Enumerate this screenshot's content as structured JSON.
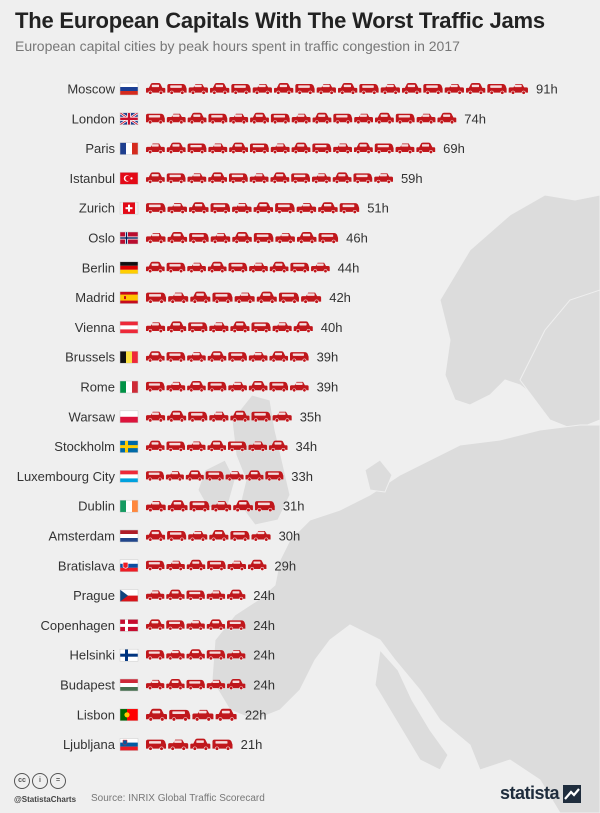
{
  "header": {
    "title": "The European Capitals With The Worst Traffic Jams",
    "subtitle": "European capital cities by peak hours spent in traffic congestion in 2017"
  },
  "colors": {
    "car": "#c0171c",
    "background": "#efefef",
    "map": "#dcdcdc",
    "text": "#333333"
  },
  "chart_data": {
    "type": "bar",
    "unit_suffix": "h",
    "title": "The European Capitals With The Worst Traffic Jams",
    "subtitle": "European capital cities by peak hours spent in traffic congestion in 2017",
    "categories": [
      "Moscow",
      "London",
      "Paris",
      "Istanbul",
      "Zurich",
      "Oslo",
      "Berlin",
      "Madrid",
      "Vienna",
      "Brussels",
      "Rome",
      "Warsaw",
      "Stockholm",
      "Luxembourg City",
      "Dublin",
      "Amsterdam",
      "Bratislava",
      "Prague",
      "Copenhagen",
      "Helsinki",
      "Budapest",
      "Lisbon",
      "Ljubljana"
    ],
    "values": [
      91,
      74,
      69,
      59,
      51,
      46,
      44,
      42,
      40,
      39,
      39,
      35,
      34,
      33,
      31,
      30,
      29,
      24,
      24,
      24,
      24,
      22,
      21
    ],
    "value_labels": [
      "91h",
      "74h",
      "69h",
      "59h",
      "51h",
      "46h",
      "44h",
      "42h",
      "40h",
      "39h",
      "39h",
      "35h",
      "34h",
      "33h",
      "31h",
      "30h",
      "29h",
      "24h",
      "24h",
      "24h",
      "24h",
      "22h",
      "21h"
    ],
    "flags": [
      "russia",
      "uk",
      "france",
      "turkey",
      "switzerland",
      "norway",
      "germany",
      "spain",
      "austria",
      "belgium",
      "italy",
      "poland",
      "sweden",
      "luxembourg",
      "ireland",
      "netherlands",
      "slovakia",
      "czechia",
      "denmark",
      "finland",
      "hungary",
      "portugal",
      "slovenia"
    ],
    "icon": "car-icon"
  },
  "footer": {
    "handle": "@StatistaCharts",
    "source": "Source: INRIX Global Traffic Scorecard",
    "brand": "statista",
    "license_icons": [
      "cc-icon",
      "by-icon",
      "nd-icon"
    ]
  }
}
